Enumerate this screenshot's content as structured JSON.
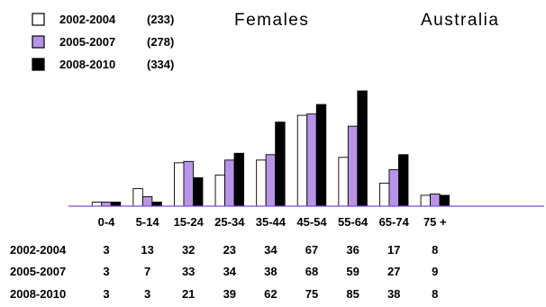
{
  "chart_data": {
    "type": "bar",
    "title": "Females",
    "subtitle": "Australia",
    "categories": [
      "0-4",
      "5-14",
      "15-24",
      "25-34",
      "35-44",
      "45-54",
      "55-64",
      "65-74",
      "75 +"
    ],
    "series": [
      {
        "name": "2002-2004",
        "legend_label": "2002-2004",
        "legend_count": "(233)",
        "table_label": "2002-2004",
        "color": "#ffffff",
        "values": [
          3,
          13,
          32,
          23,
          34,
          67,
          36,
          17,
          8
        ]
      },
      {
        "name": "2005-2007",
        "legend_label": "2005-2007",
        "legend_count": "(278)",
        "table_label": "2005-2007",
        "color": "#b894e8",
        "values": [
          3,
          7,
          33,
          34,
          38,
          68,
          59,
          27,
          9
        ]
      },
      {
        "name": "2008-2010",
        "legend_label": "2008-2010",
        "legend_count": "(334)",
        "table_label": "2008-2010",
        "color": "#000000",
        "values": [
          3,
          3,
          21,
          39,
          62,
          75,
          85,
          38,
          8
        ]
      }
    ],
    "ylim": [
      0,
      85
    ],
    "axis_color": "#7a4fc8",
    "legend_position": "top-left",
    "grid": false
  }
}
